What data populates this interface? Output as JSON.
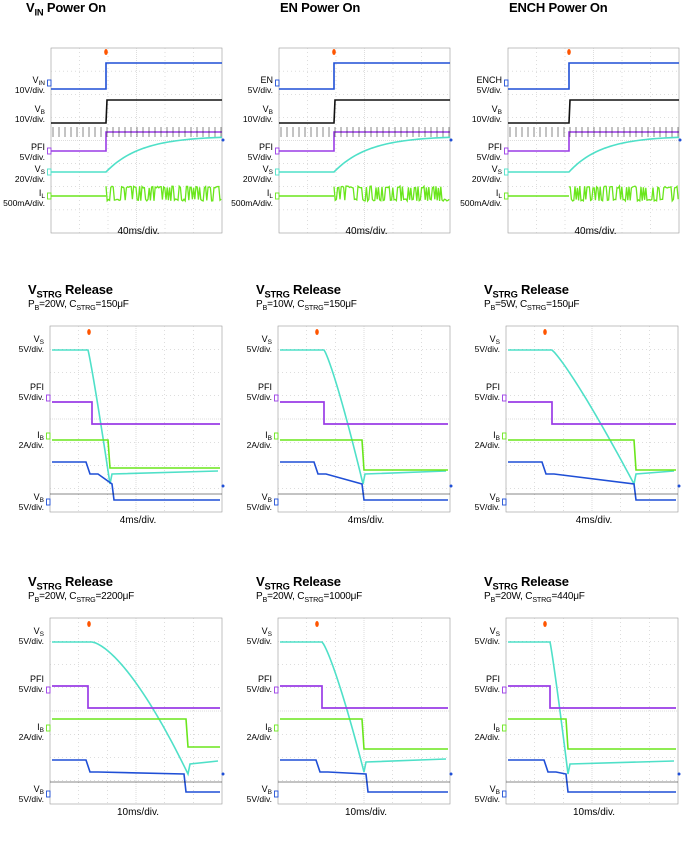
{
  "colors": {
    "blue": "#1f4fd6",
    "black": "#111111",
    "purple": "#9a3ce6",
    "cyan": "#4fe0c8",
    "green": "#6ae61c",
    "marker": "#ff5500"
  },
  "time_div": "40ms/div.",
  "panels": [
    {
      "title": "V",
      "title_sub": "IN",
      "title_rest": " Power On",
      "subtitle": "",
      "xlabel": "40ms/div.",
      "labels": [
        {
          "t": "V",
          "s": "IN",
          "u": "10V/div."
        },
        {
          "t": "V",
          "s": "B",
          "u": "10V/div."
        },
        {
          "t": "PFI",
          "s": "",
          "u": "5V/div."
        },
        {
          "t": "V",
          "s": "S",
          "u": "20V/div."
        },
        {
          "t": "I",
          "s": "L",
          "u": "500mA/div."
        }
      ]
    },
    {
      "title": "EN Power On",
      "title_sub": "",
      "title_rest": "",
      "subtitle": "",
      "xlabel": "40ms/div.",
      "labels": [
        {
          "t": "EN",
          "s": "",
          "u": "5V/div."
        },
        {
          "t": "V",
          "s": "B",
          "u": "10V/div."
        },
        {
          "t": "PFI",
          "s": "",
          "u": "5V/div."
        },
        {
          "t": "V",
          "s": "S",
          "u": "20V/div."
        },
        {
          "t": "I",
          "s": "L",
          "u": "500mA/div."
        }
      ]
    },
    {
      "title": "ENCH Power On",
      "title_sub": "",
      "title_rest": "",
      "subtitle": "",
      "xlabel": "40ms/div.",
      "labels": [
        {
          "t": "ENCH",
          "s": "",
          "u": "5V/div."
        },
        {
          "t": "V",
          "s": "B",
          "u": "10V/div."
        },
        {
          "t": "PFI",
          "s": "",
          "u": "5V/div."
        },
        {
          "t": "V",
          "s": "S",
          "u": "20V/div."
        },
        {
          "t": "I",
          "s": "L",
          "u": "500mA/div."
        }
      ]
    },
    {
      "title": "V",
      "title_sub": "STRG",
      "title_rest": " Release",
      "subtitle": "P_B=20W, C_STRG=150μF",
      "sub_parts": [
        "P",
        "B",
        "=20W, C",
        "STRG",
        "=150μF"
      ],
      "xlabel": "4ms/div.",
      "labels": [
        {
          "t": "V",
          "s": "S",
          "u": "5V/div."
        },
        {
          "t": "PFI",
          "s": "",
          "u": "5V/div."
        },
        {
          "t": "I",
          "s": "B",
          "u": "2A/div."
        },
        {
          "t": "V",
          "s": "B",
          "u": "5V/div."
        }
      ]
    },
    {
      "title": "V",
      "title_sub": "STRG",
      "title_rest": " Release",
      "sub_parts": [
        "P",
        "B",
        "=10W, C",
        "STRG",
        "=150μF"
      ],
      "xlabel": "4ms/div.",
      "labels": [
        {
          "t": "V",
          "s": "S",
          "u": "5V/div."
        },
        {
          "t": "PFI",
          "s": "",
          "u": "5V/div."
        },
        {
          "t": "I",
          "s": "B",
          "u": "2A/div."
        },
        {
          "t": "V",
          "s": "B",
          "u": "5V/div."
        }
      ]
    },
    {
      "title": "V",
      "title_sub": "STRG",
      "title_rest": " Release",
      "sub_parts": [
        "P",
        "B",
        "=5W, C",
        "STRG",
        "=150μF"
      ],
      "xlabel": "4ms/div.",
      "labels": [
        {
          "t": "V",
          "s": "S",
          "u": "5V/div."
        },
        {
          "t": "PFI",
          "s": "",
          "u": "5V/div."
        },
        {
          "t": "I",
          "s": "B",
          "u": "2A/div."
        },
        {
          "t": "V",
          "s": "B",
          "u": "5V/div."
        }
      ]
    },
    {
      "title": "V",
      "title_sub": "STRG",
      "title_rest": " Release",
      "sub_parts": [
        "P",
        "B",
        "=20W, C",
        "STRG",
        "=2200μF"
      ],
      "xlabel": "10ms/div.",
      "labels": [
        {
          "t": "V",
          "s": "S",
          "u": "5V/div."
        },
        {
          "t": "PFI",
          "s": "",
          "u": "5V/div."
        },
        {
          "t": "I",
          "s": "B",
          "u": "2A/div."
        },
        {
          "t": "V",
          "s": "B",
          "u": "5V/div."
        }
      ]
    },
    {
      "title": "V",
      "title_sub": "STRG",
      "title_rest": " Release",
      "sub_parts": [
        "P",
        "B",
        "=20W, C",
        "STRG",
        "=1000μF"
      ],
      "xlabel": "10ms/div.",
      "labels": [
        {
          "t": "V",
          "s": "S",
          "u": "5V/div."
        },
        {
          "t": "PFI",
          "s": "",
          "u": "5V/div."
        },
        {
          "t": "I",
          "s": "B",
          "u": "2A/div."
        },
        {
          "t": "V",
          "s": "B",
          "u": "5V/div."
        }
      ]
    },
    {
      "title": "V",
      "title_sub": "STRG",
      "title_rest": " Release",
      "sub_parts": [
        "P",
        "B",
        "=20W, C",
        "STRG",
        "=440μF"
      ],
      "xlabel": "10ms/div.",
      "labels": [
        {
          "t": "V",
          "s": "S",
          "u": "5V/div."
        },
        {
          "t": "PFI",
          "s": "",
          "u": "5V/div."
        },
        {
          "t": "I",
          "s": "B",
          "u": "2A/div."
        },
        {
          "t": "V",
          "s": "B",
          "u": "5V/div."
        }
      ]
    }
  ],
  "chart_data": [
    {
      "type": "line",
      "title": "V_IN Power On",
      "xlabel": "40ms/div.",
      "series": [
        {
          "name": "V_IN"
        },
        {
          "name": "V_B"
        },
        {
          "name": "PFI"
        },
        {
          "name": "V_S"
        },
        {
          "name": "I_L"
        }
      ]
    },
    {
      "type": "line",
      "title": "EN Power On",
      "xlabel": "40ms/div.",
      "series": [
        {
          "name": "EN"
        },
        {
          "name": "V_B"
        },
        {
          "name": "PFI"
        },
        {
          "name": "V_S"
        },
        {
          "name": "I_L"
        }
      ]
    },
    {
      "type": "line",
      "title": "ENCH Power On",
      "xlabel": "40ms/div.",
      "series": [
        {
          "name": "ENCH"
        },
        {
          "name": "V_B"
        },
        {
          "name": "PFI"
        },
        {
          "name": "V_S"
        },
        {
          "name": "I_L"
        }
      ]
    },
    {
      "type": "line",
      "title": "V_STRG Release",
      "subtitle": "P_B=20W, C_STRG=150μF",
      "xlabel": "4ms/div.",
      "series": [
        {
          "name": "V_S"
        },
        {
          "name": "PFI"
        },
        {
          "name": "I_B"
        },
        {
          "name": "V_B"
        }
      ]
    },
    {
      "type": "line",
      "title": "V_STRG Release",
      "subtitle": "P_B=10W, C_STRG=150μF",
      "xlabel": "4ms/div.",
      "series": [
        {
          "name": "V_S"
        },
        {
          "name": "PFI"
        },
        {
          "name": "I_B"
        },
        {
          "name": "V_B"
        }
      ]
    },
    {
      "type": "line",
      "title": "V_STRG Release",
      "subtitle": "P_B=5W, C_STRG=150μF",
      "xlabel": "4ms/div.",
      "series": [
        {
          "name": "V_S"
        },
        {
          "name": "PFI"
        },
        {
          "name": "I_B"
        },
        {
          "name": "V_B"
        }
      ]
    },
    {
      "type": "line",
      "title": "V_STRG Release",
      "subtitle": "P_B=20W, C_STRG=2200μF",
      "xlabel": "10ms/div.",
      "series": [
        {
          "name": "V_S"
        },
        {
          "name": "PFI"
        },
        {
          "name": "I_B"
        },
        {
          "name": "V_B"
        }
      ]
    },
    {
      "type": "line",
      "title": "V_STRG Release",
      "subtitle": "P_B=20W, C_STRG=1000μF",
      "xlabel": "10ms/div.",
      "series": [
        {
          "name": "V_S"
        },
        {
          "name": "PFI"
        },
        {
          "name": "I_B"
        },
        {
          "name": "V_B"
        }
      ]
    },
    {
      "type": "line",
      "title": "V_STRG Release",
      "subtitle": "P_B=20W, C_STRG=440μF",
      "xlabel": "10ms/div.",
      "series": [
        {
          "name": "V_S"
        },
        {
          "name": "PFI"
        },
        {
          "name": "I_B"
        },
        {
          "name": "V_B"
        }
      ]
    }
  ]
}
